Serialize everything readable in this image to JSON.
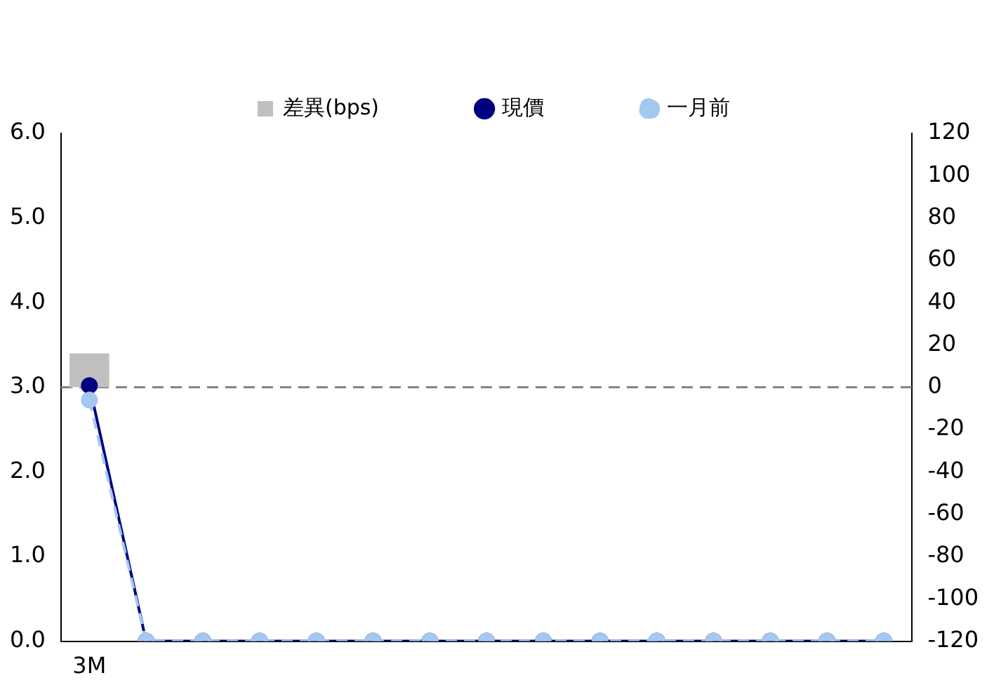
{
  "chart_data": {
    "type": "line",
    "categories": [
      "3M",
      null,
      null,
      null,
      null,
      null,
      null,
      null,
      null,
      null,
      null,
      null,
      null,
      null,
      null
    ],
    "series": [
      {
        "name": "差異(bps)",
        "type": "bar",
        "axis": "y2",
        "color": "#c0c0c0",
        "values": [
          16,
          null,
          null,
          null,
          null,
          null,
          null,
          null,
          null,
          null,
          null,
          null,
          null,
          null,
          null
        ]
      },
      {
        "name": "現價",
        "color": "#000080",
        "line_style": "solid",
        "values": [
          3.02,
          0,
          0,
          0,
          0,
          0,
          0,
          0,
          0,
          0,
          0,
          0,
          0,
          0,
          0
        ]
      },
      {
        "name": "一月前",
        "color": "#a4c8f0",
        "line_style": "dashed",
        "values": [
          2.85,
          0,
          0,
          0,
          0,
          0,
          0,
          0,
          0,
          0,
          0,
          0,
          0,
          0,
          0
        ]
      }
    ],
    "ylim": [
      0,
      6
    ],
    "yticks": [
      {
        "value": 0,
        "label": "0.0"
      },
      {
        "value": 1,
        "label": "1.0"
      },
      {
        "value": 2,
        "label": "2.0"
      },
      {
        "value": 3,
        "label": "3.0"
      },
      {
        "value": 4,
        "label": "4.0"
      },
      {
        "value": 5,
        "label": "5.0"
      },
      {
        "value": 6,
        "label": "6.0"
      }
    ],
    "y2lim": [
      -120,
      120
    ],
    "y2ticks": [
      -120,
      -100,
      -80,
      -60,
      -40,
      -20,
      0,
      20,
      40,
      60,
      80,
      100,
      120
    ],
    "ref_lines": [
      {
        "axis": "y2",
        "value": 0,
        "color": "#808080",
        "line_style": "dashed"
      }
    ],
    "marker": "circle",
    "legend": "top",
    "grid": false
  }
}
